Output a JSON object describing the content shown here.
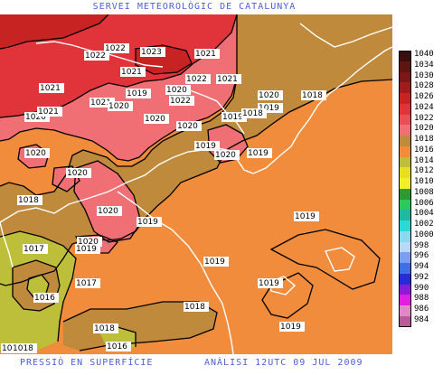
{
  "header": {
    "title": "SERVEI METEOROLÒGIC DE CATALUNYA"
  },
  "footer": {
    "left": "PRESSIÓ EN SUPERFÍCIE",
    "right": "ANÀLISI 12UTC 09 JUL 2009"
  },
  "scale": {
    "levels": [
      {
        "value": "1040",
        "color": "#3b0f0f"
      },
      {
        "value": "1034",
        "color": "#5e1512"
      },
      {
        "value": "1030",
        "color": "#7b1717"
      },
      {
        "value": "1028",
        "color": "#a01c1c"
      },
      {
        "value": "1026",
        "color": "#c72323"
      },
      {
        "value": "1024",
        "color": "#e0333a"
      },
      {
        "value": "1022",
        "color": "#ea4f55"
      },
      {
        "value": "1020",
        "color": "#ef6f74"
      },
      {
        "value": "1018",
        "color": "#bf8a3b"
      },
      {
        "value": "1016",
        "color": "#f08c3c"
      },
      {
        "value": "1014",
        "color": "#bdbf3a"
      },
      {
        "value": "1012",
        "color": "#e8e01f"
      },
      {
        "value": "1010",
        "color": "#f2ef2a"
      },
      {
        "value": "1008",
        "color": "#2f9a33"
      },
      {
        "value": "1006",
        "color": "#28c95d"
      },
      {
        "value": "1004",
        "color": "#1fb9a0"
      },
      {
        "value": "1002",
        "color": "#2bd9d4"
      },
      {
        "value": "1000",
        "color": "#8ad9f0"
      },
      {
        "value": "998",
        "color": "#b8d8f5"
      },
      {
        "value": "996",
        "color": "#7a9ef0"
      },
      {
        "value": "994",
        "color": "#3f6fe6"
      },
      {
        "value": "992",
        "color": "#2a2ad8"
      },
      {
        "value": "990",
        "color": "#8a1bd8"
      },
      {
        "value": "988",
        "color": "#e21fe0"
      },
      {
        "value": "986",
        "color": "#e087c9"
      },
      {
        "value": "984",
        "color": "#b85a98"
      }
    ]
  },
  "isobar_labels": [
    "1022",
    "1023",
    "1021",
    "1022",
    "1021",
    "1021",
    "1022",
    "1021",
    "1018",
    "1019",
    "1020",
    "1022",
    "1020",
    "1021",
    "1020",
    "1019",
    "1020",
    "1020",
    "1021",
    "1020",
    "1019",
    "1018",
    "1019",
    "1019",
    "1019",
    "1019",
    "1019",
    "1020",
    "1019",
    "1020",
    "1020",
    "1018",
    "1020",
    "1020",
    "1017",
    "1019",
    "1016",
    "1017",
    "1019",
    "1018",
    "1017",
    "1018",
    "1016",
    "1016",
    "1018",
    "1018",
    "1019"
  ],
  "colors": {
    "high": "#e03a3a",
    "mid": "#ef6f74",
    "base": "#f08c3c",
    "low": "#bf8a3b",
    "lowest": "#bdbf3a"
  }
}
